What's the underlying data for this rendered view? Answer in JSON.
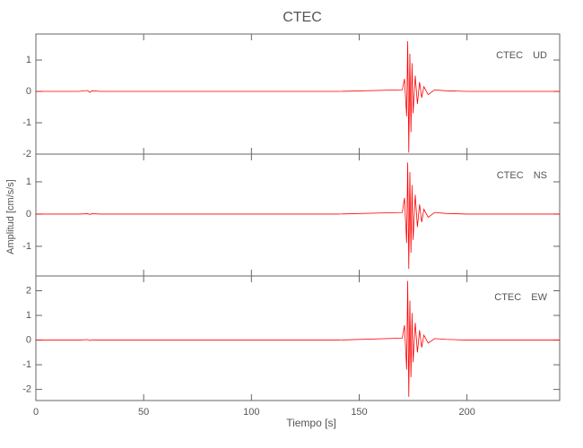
{
  "chart_data": [
    {
      "type": "line",
      "title": "CTEC",
      "label": "CTEC UD",
      "color": "#ff0000",
      "x": [
        0,
        20,
        24,
        25,
        26,
        30,
        60,
        100,
        140,
        170,
        171,
        172,
        172.5,
        173,
        173.5,
        174,
        174.5,
        175,
        176,
        177,
        178,
        179,
        180,
        182,
        185,
        190,
        200,
        243
      ],
      "values": [
        0,
        0,
        0.03,
        -0.03,
        0.02,
        0,
        0,
        0,
        0,
        0.05,
        0.4,
        -0.8,
        1.6,
        -1.95,
        1.2,
        -1.3,
        0.9,
        -0.7,
        0.5,
        -0.4,
        0.3,
        -0.2,
        0.15,
        -0.1,
        0.05,
        0.02,
        0,
        0
      ],
      "xlim": [
        0,
        243
      ],
      "xticks": [
        0,
        50,
        100,
        150,
        200
      ],
      "ylim": [
        -2,
        1.83
      ],
      "yticks": [
        -2,
        -1,
        0,
        1
      ]
    },
    {
      "type": "line",
      "label": "CTEC NS",
      "ylabel": "Amplitud [cm/s/s]",
      "color": "#ff0000",
      "x": [
        0,
        20,
        24,
        25,
        26,
        30,
        60,
        100,
        140,
        170,
        171,
        172,
        172.5,
        173,
        173.5,
        174,
        174.5,
        175,
        176,
        177,
        178,
        179,
        180,
        182,
        185,
        190,
        200,
        243
      ],
      "values": [
        0,
        0,
        0.01,
        -0.01,
        0.01,
        0,
        0,
        0,
        0,
        0.05,
        0.5,
        -0.9,
        1.6,
        -1.7,
        1.3,
        -1.2,
        0.9,
        -0.8,
        0.6,
        -0.4,
        0.3,
        -0.25,
        0.15,
        -0.1,
        0.05,
        0.02,
        0,
        0
      ],
      "xlim": [
        0,
        243
      ],
      "xticks": [
        0,
        50,
        100,
        150,
        200
      ],
      "ylim": [
        -1.92,
        1.86
      ],
      "yticks": [
        -1,
        0,
        1
      ]
    },
    {
      "type": "line",
      "label": "CTEC EW",
      "xlabel": "Tiempo [s]",
      "color": "#ff0000",
      "x": [
        0,
        20,
        24,
        25,
        26,
        30,
        60,
        100,
        140,
        170,
        171,
        172,
        172.5,
        173,
        173.5,
        174,
        174.5,
        175,
        176,
        177,
        178,
        179,
        180,
        182,
        185,
        190,
        200,
        243
      ],
      "values": [
        0,
        0,
        0.02,
        -0.02,
        0.01,
        0,
        0,
        0,
        0,
        0.08,
        0.6,
        -1.2,
        2.4,
        -2.3,
        1.6,
        -1.5,
        1.1,
        -0.9,
        0.7,
        -0.5,
        0.4,
        -0.3,
        0.2,
        -0.12,
        0.06,
        0.03,
        0,
        0
      ],
      "xlim": [
        0,
        243
      ],
      "xticks": [
        0,
        50,
        100,
        150,
        200
      ],
      "ylim": [
        -2.45,
        2.6
      ],
      "yticks": [
        -2,
        -1,
        0,
        1,
        2
      ],
      "show_xtick_labels": true
    }
  ]
}
